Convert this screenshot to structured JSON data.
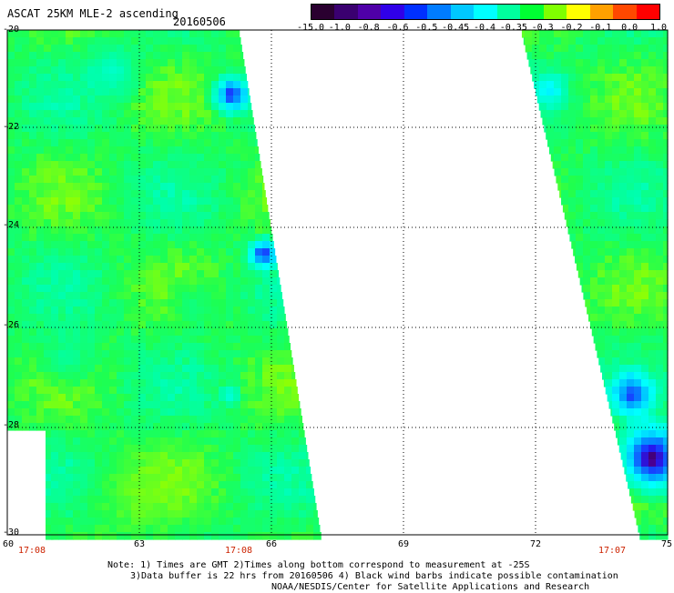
{
  "header": {
    "title": "ASCAT 25KM MLE-2 ascending",
    "date": "20160506"
  },
  "colorbar": {
    "labels": [
      "-15.0",
      "-1.0",
      "-0.8",
      "-0.6",
      "-0.5",
      "-0.45",
      "-0.4",
      "-0.35",
      "-0.3",
      "-0.2",
      "-0.1",
      "0.0",
      "1.0"
    ],
    "colors": [
      "#2a0030",
      "#3a0070",
      "#4f00a8",
      "#3000e8",
      "#0030ff",
      "#007cff",
      "#00c8ff",
      "#00ffff",
      "#00ff9e",
      "#00ff33",
      "#80ff00",
      "#ffff00",
      "#ffa000",
      "#ff4800",
      "#ff0000"
    ]
  },
  "map": {
    "lon_labels": [
      "60",
      "63",
      "66",
      "69",
      "72",
      "75"
    ],
    "lat_labels": [
      "-20",
      "-22",
      "-24",
      "-26",
      "-28",
      "-30"
    ],
    "lon_range": [
      60,
      75
    ],
    "lat_range": [
      -30,
      -20
    ],
    "time_labels": [
      "17:08",
      "17:08",
      "17:07"
    ],
    "grid": "dotted"
  },
  "notes": {
    "line1": "Note: 1) Times are GMT 2)Times along bottom correspond to measurement at -25S",
    "line2": "3)Data buffer is 22 hrs from 20160506 4) Black wind barbs indicate possible contamination",
    "line3": "NOAA/NESDIS/Center for Satellite Applications and Research"
  }
}
